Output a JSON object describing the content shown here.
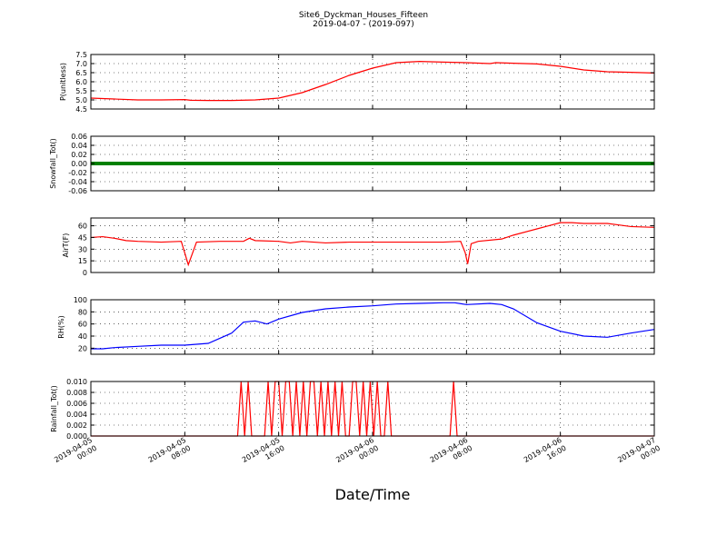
{
  "figure": {
    "title": "Site6_Dyckman_Houses_Fifteen",
    "subtitle": "2019-04-07 - (2019-097)",
    "xlabel": "Date/Time"
  },
  "chart_data": [
    {
      "type": "line",
      "ylabel": "P(unitless)",
      "color": "#ff0000",
      "ylim": [
        4.5,
        7.5
      ],
      "yticks": [
        "7.5",
        "7.0",
        "6.5",
        "6.0",
        "5.5",
        "5.0",
        "4.5"
      ],
      "grid": true,
      "x_hours": [
        0,
        2,
        4,
        6,
        8,
        8.5,
        10,
        12,
        14,
        16,
        18,
        20,
        22,
        24,
        26,
        28,
        30,
        32,
        34,
        34.5,
        36,
        38,
        40,
        42,
        44,
        46,
        48
      ],
      "values": [
        5.1,
        5.05,
        5.0,
        5.0,
        5.02,
        4.98,
        4.97,
        4.97,
        5.0,
        5.1,
        5.4,
        5.85,
        6.35,
        6.75,
        7.05,
        7.12,
        7.08,
        7.05,
        7.0,
        7.05,
        7.02,
        6.98,
        6.85,
        6.65,
        6.55,
        6.52,
        6.48
      ]
    },
    {
      "type": "line",
      "ylabel": "Snowfall_Tot()",
      "color": "#008000",
      "ylim": [
        -0.06,
        0.06
      ],
      "yticks": [
        "0.06",
        "0.04",
        "0.02",
        "0.00",
        "-0.02",
        "-0.04",
        "-0.06"
      ],
      "grid": true,
      "x_hours": [
        0,
        48
      ],
      "values": [
        0,
        0
      ]
    },
    {
      "type": "line",
      "ylabel": "AirT(F)",
      "color": "#ff0000",
      "ylim": [
        0,
        70
      ],
      "yticks": [
        "60",
        "45",
        "30",
        "15",
        "0"
      ],
      "grid": true,
      "x_hours": [
        0,
        1,
        2,
        3,
        4,
        6,
        7.7,
        8.0,
        8.3,
        9,
        11,
        12,
        13,
        13.5,
        14,
        16,
        17,
        18,
        20,
        22,
        24,
        26,
        28,
        30,
        31.5,
        31.9,
        32.1,
        32.4,
        33,
        35,
        36,
        38,
        39,
        40,
        41,
        42,
        44,
        45,
        46,
        48
      ],
      "values": [
        45,
        46,
        44,
        41,
        40,
        39,
        40,
        25,
        10,
        39,
        40,
        40,
        40,
        44,
        41,
        40,
        38,
        40,
        38,
        39,
        39,
        39,
        39,
        39,
        40,
        25,
        11,
        37,
        40,
        43,
        48,
        56,
        60,
        64,
        64,
        63,
        63,
        61,
        59,
        58
      ]
    },
    {
      "type": "line",
      "ylabel": "RH(%)",
      "color": "#0000ff",
      "ylim": [
        10,
        100
      ],
      "yticks": [
        "100",
        "80",
        "60",
        "40",
        "20"
      ],
      "grid": true,
      "x_hours": [
        0,
        1,
        2,
        4,
        6,
        8,
        10,
        12,
        13,
        14,
        15,
        16,
        18,
        20,
        22,
        24,
        26,
        28,
        30,
        31,
        32,
        34,
        35,
        36,
        38,
        40,
        42,
        44,
        46,
        48
      ],
      "values": [
        19,
        19,
        21,
        23,
        25,
        25,
        28,
        45,
        63,
        65,
        60,
        68,
        79,
        85,
        88,
        90,
        93,
        94,
        95,
        95,
        92,
        94,
        92,
        85,
        62,
        48,
        40,
        38,
        45,
        51
      ]
    },
    {
      "type": "line",
      "ylabel": "Rainfall_Tot()",
      "color": "#ff0000",
      "ylim": [
        0,
        0.01
      ],
      "yticks": [
        "0.010",
        "0.008",
        "0.006",
        "0.004",
        "0.002",
        "0.000"
      ],
      "grid": true,
      "x_hours": [
        0,
        12.5,
        12.8,
        13.1,
        13.4,
        13.7,
        14,
        14.8,
        15.1,
        15.4,
        15.7,
        16,
        16.3,
        16.6,
        16.9,
        17.2,
        17.5,
        17.8,
        18.1,
        18.4,
        18.7,
        19,
        19.3,
        19.6,
        19.9,
        20.2,
        20.5,
        20.8,
        21.1,
        21.4,
        21.7,
        22,
        22.3,
        22.6,
        22.9,
        23.2,
        23.5,
        23.8,
        24.1,
        24.4,
        24.7,
        25,
        25.3,
        25.6,
        30.6,
        30.9,
        31.2,
        48
      ],
      "values": [
        0,
        0,
        0.01,
        0,
        0.01,
        0,
        0,
        0,
        0.01,
        0,
        0.01,
        0.01,
        0,
        0.01,
        0.01,
        0,
        0.01,
        0,
        0.01,
        0,
        0.01,
        0.01,
        0,
        0.01,
        0,
        0.01,
        0,
        0.01,
        0,
        0.01,
        0,
        0,
        0.01,
        0.01,
        0,
        0.01,
        0,
        0.01,
        0,
        0.01,
        0,
        0,
        0.01,
        0,
        0,
        0.01,
        0,
        0
      ]
    }
  ],
  "xaxis": {
    "range_hours": [
      0,
      48
    ],
    "ticks": [
      {
        "hour": 0,
        "line1": "2019-04-05",
        "line2": "00:00"
      },
      {
        "hour": 8,
        "line1": "2019-04-05",
        "line2": "08:00"
      },
      {
        "hour": 16,
        "line1": "2019-04-05",
        "line2": "16:00"
      },
      {
        "hour": 24,
        "line1": "2019-04-06",
        "line2": "00:00"
      },
      {
        "hour": 32,
        "line1": "2019-04-06",
        "line2": "08:00"
      },
      {
        "hour": 40,
        "line1": "2019-04-06",
        "line2": "16:00"
      },
      {
        "hour": 48,
        "line1": "2019-04-07",
        "line2": "00:00"
      }
    ]
  }
}
